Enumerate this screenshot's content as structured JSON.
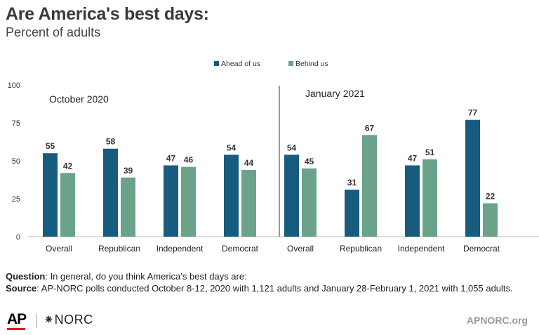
{
  "header": {
    "title": "Are America's best days:",
    "subtitle": "Percent of adults"
  },
  "chart_data": {
    "type": "bar",
    "ylim": [
      0,
      100
    ],
    "yticks": [
      0,
      25,
      50,
      75,
      100
    ],
    "grid": false,
    "legend_position": "top-center",
    "colors": {
      "ahead": "#175c7e",
      "behind": "#6ba38a"
    },
    "legend": [
      "Ahead of us",
      "Behind us"
    ],
    "panels": [
      {
        "label": "October 2020",
        "categories": [
          "Overall",
          "Republican",
          "Independent",
          "Democrat"
        ],
        "series": [
          {
            "name": "Ahead of us",
            "values": [
              55,
              58,
              47,
              54
            ]
          },
          {
            "name": "Behind us",
            "values": [
              42,
              39,
              46,
              44
            ]
          }
        ]
      },
      {
        "label": "January 2021",
        "categories": [
          "Overall",
          "Republican",
          "Independent",
          "Democrat"
        ],
        "series": [
          {
            "name": "Ahead of us",
            "values": [
              54,
              31,
              47,
              77
            ]
          },
          {
            "name": "Behind us",
            "values": [
              45,
              67,
              51,
              22
            ]
          }
        ]
      }
    ]
  },
  "footnote": {
    "question_label": "Question",
    "question_text": ": In general, do you think America’s best days are:",
    "source_label": "Source",
    "source_text": ": AP-NORC polls conducted October 8-12, 2020 with 1,121 adults and January 28-February 1, 2021 with 1,055 adults."
  },
  "branding": {
    "ap": "AP",
    "norc": "⁕NORC",
    "site": "APNORC.org"
  }
}
